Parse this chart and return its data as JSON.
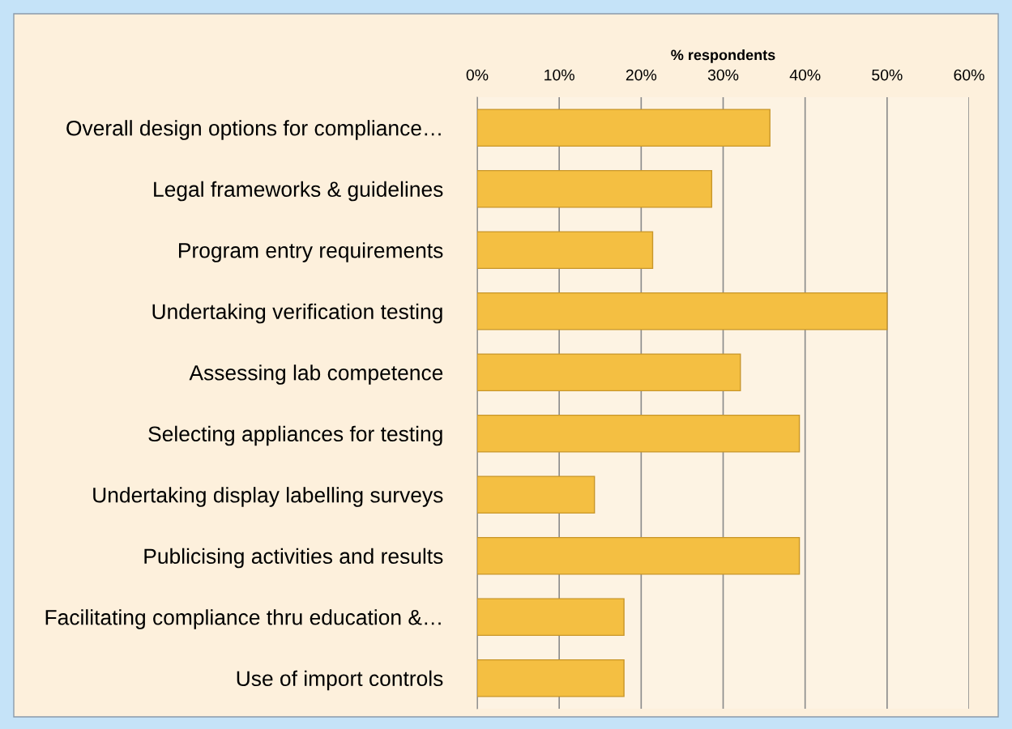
{
  "chart_data": {
    "type": "bar",
    "orientation": "horizontal",
    "xlabel": "% respondents",
    "categories": [
      "Overall design options for compliance…",
      "Legal frameworks & guidelines",
      "Program entry requirements",
      "Undertaking verification testing",
      "Assessing lab competence",
      "Selecting appliances for testing",
      "Undertaking display labelling surveys",
      "Publicising activities and results",
      "Facilitating compliance thru education &…",
      "Use of import controls"
    ],
    "values": [
      35.7,
      28.6,
      21.4,
      50.0,
      32.1,
      39.3,
      14.3,
      39.3,
      17.9,
      17.9
    ],
    "color": "#f4bf42",
    "xlim": [
      0,
      60
    ],
    "xticks": [
      {
        "value": 0,
        "label": "0%"
      },
      {
        "value": 10,
        "label": "10%"
      },
      {
        "value": 20,
        "label": "20%"
      },
      {
        "value": 30,
        "label": "30%"
      },
      {
        "value": 40,
        "label": "40%"
      },
      {
        "value": 50,
        "label": "50%"
      },
      {
        "value": 60,
        "label": "60%"
      }
    ],
    "grid": "x",
    "legend": false
  }
}
